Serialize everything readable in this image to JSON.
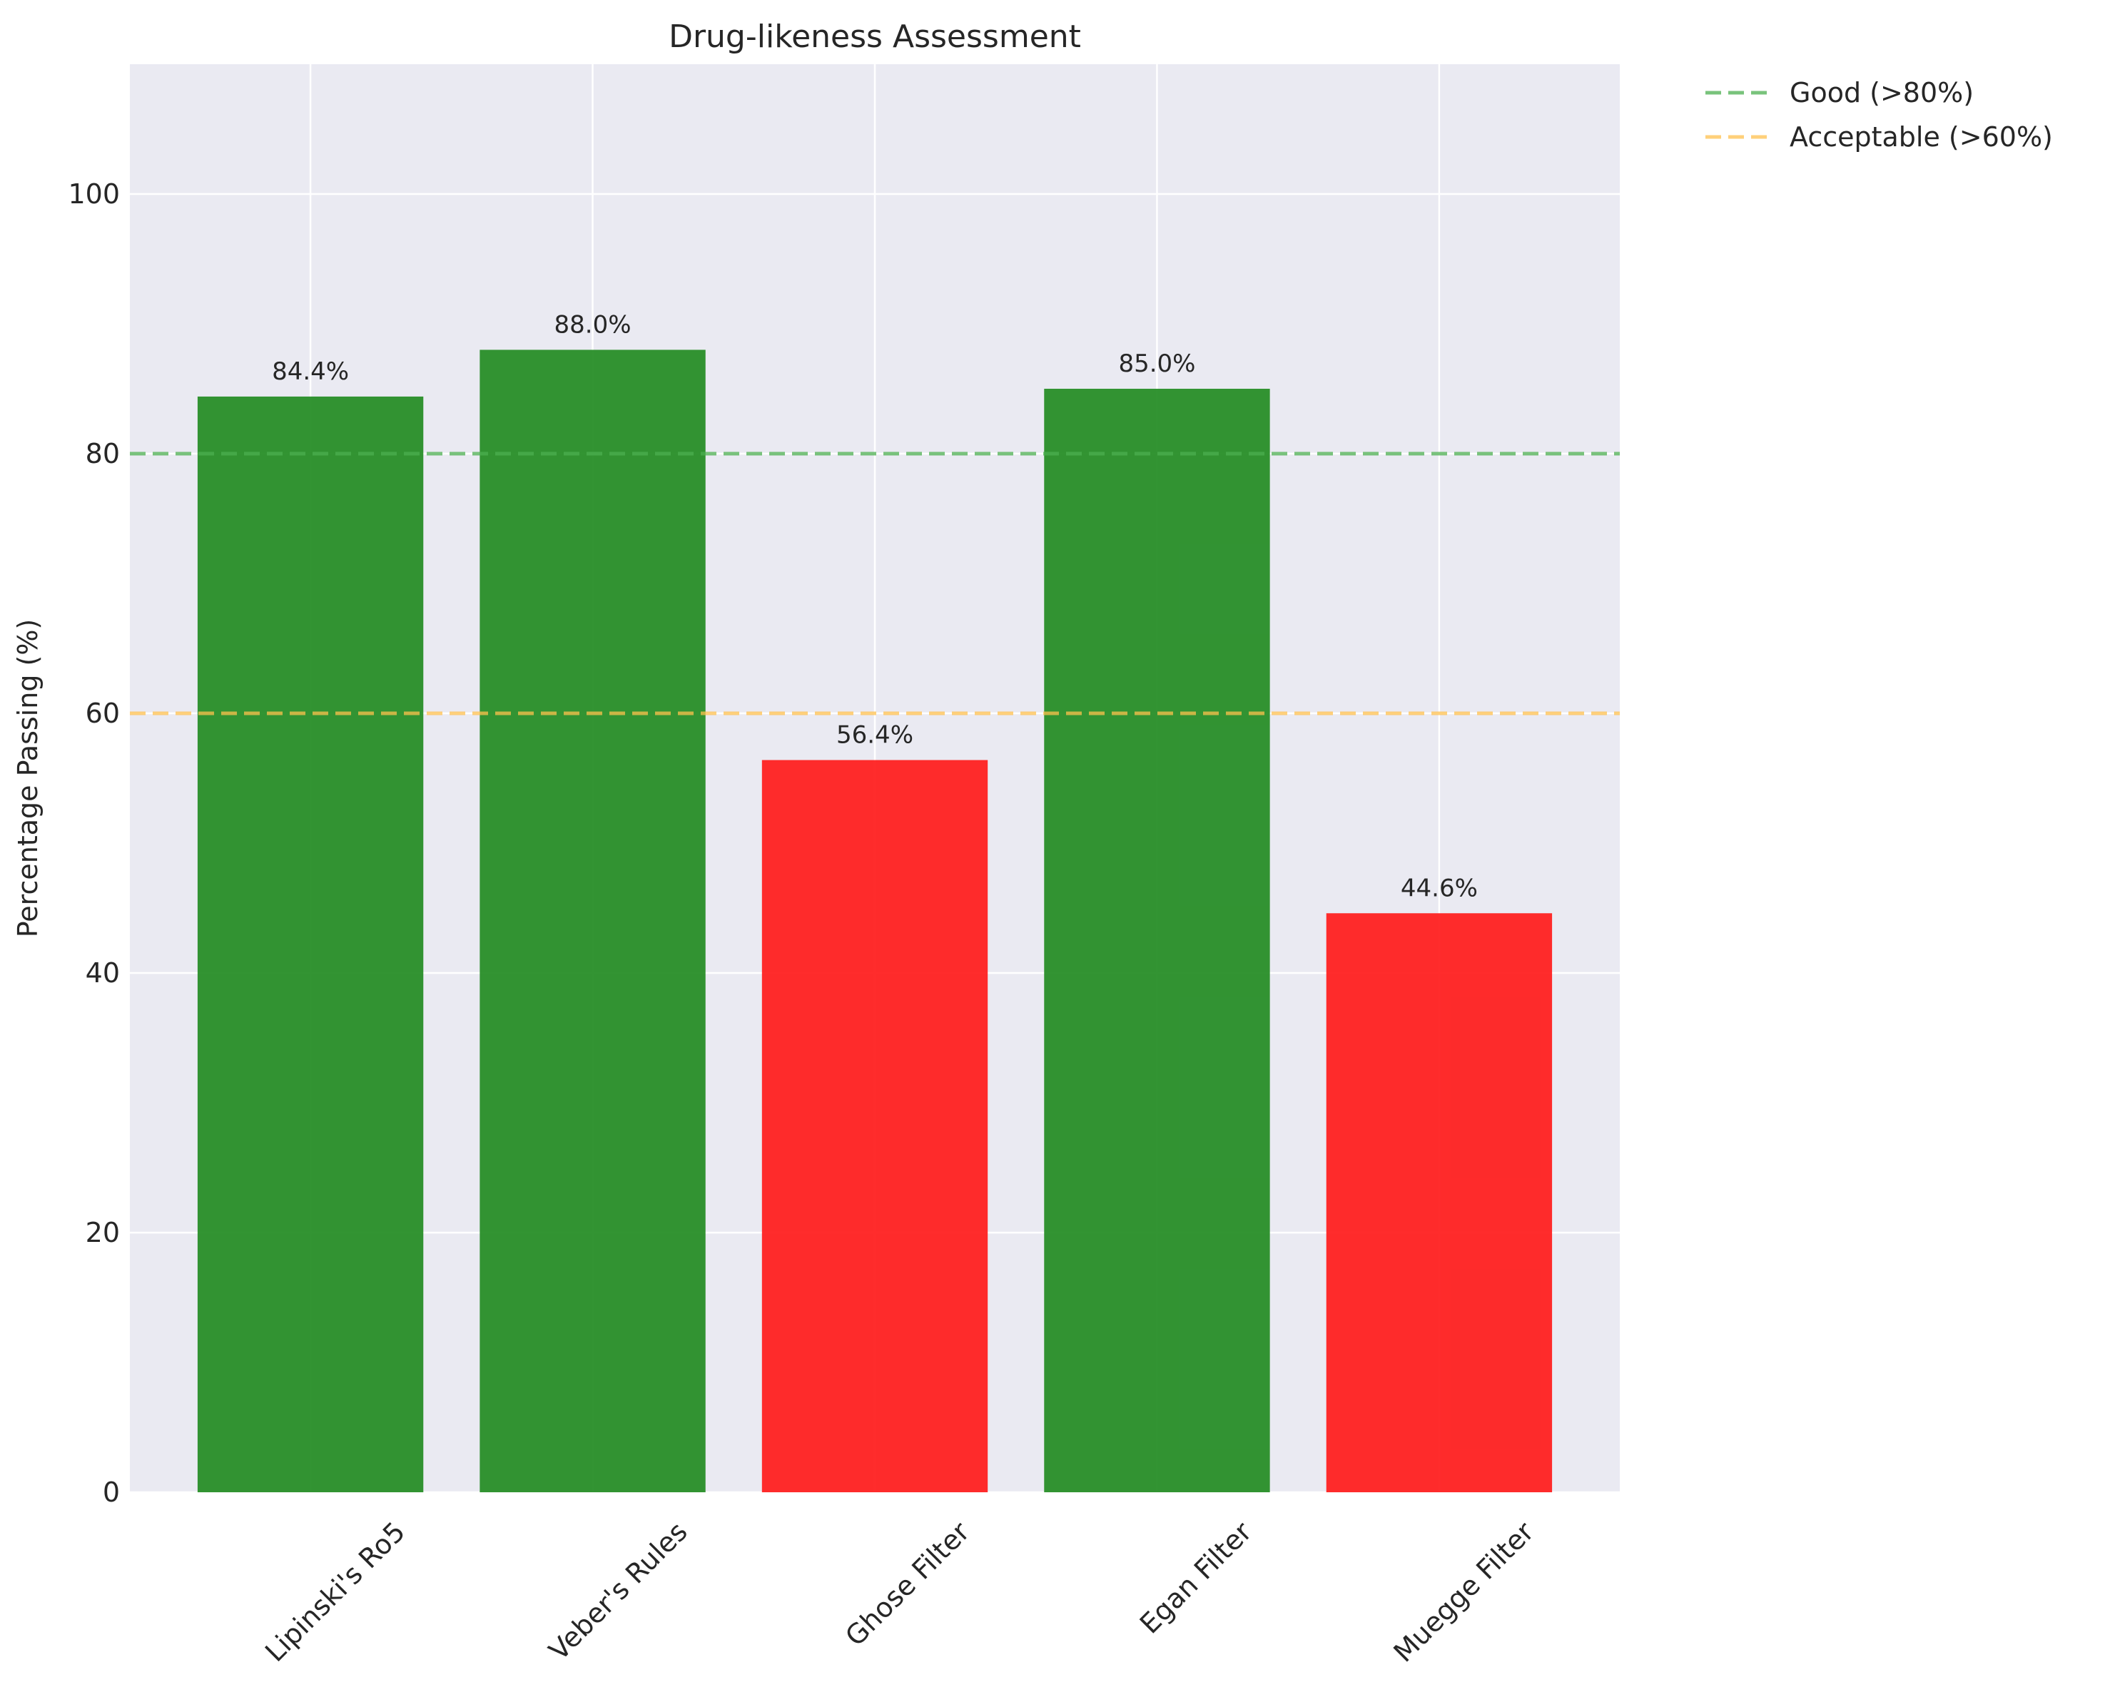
{
  "chart_data": {
    "type": "bar",
    "title": "Drug-likeness Assessment",
    "xlabel": "",
    "ylabel": "Percentage Passing (%)",
    "ylim": [
      0,
      110
    ],
    "yticks": [
      0,
      20,
      40,
      60,
      80,
      100
    ],
    "grid": true,
    "categories": [
      "Lipinski's Ro5",
      "Veber's Rules",
      "Ghose Filter",
      "Egan Filter",
      "Muegge Filter"
    ],
    "values": [
      84.4,
      88.0,
      56.4,
      85.0,
      44.6
    ],
    "data_labels": [
      "84.4%",
      "88.0%",
      "56.4%",
      "85.0%",
      "44.6%"
    ],
    "bar_colors": [
      "#228B22",
      "#228B22",
      "#FF1A1A",
      "#228B22",
      "#FF1A1A"
    ],
    "reference_lines": [
      {
        "name": "Good (>80%)",
        "y": 80,
        "color": "#4CAF50",
        "style": "dashed"
      },
      {
        "name": "Acceptable (>60%)",
        "y": 60,
        "color": "#FFC04D",
        "style": "dashed"
      }
    ],
    "legend_position": "outside-top-right",
    "colors": {
      "background": "#EAEAF2",
      "grid": "#FFFFFF"
    }
  }
}
